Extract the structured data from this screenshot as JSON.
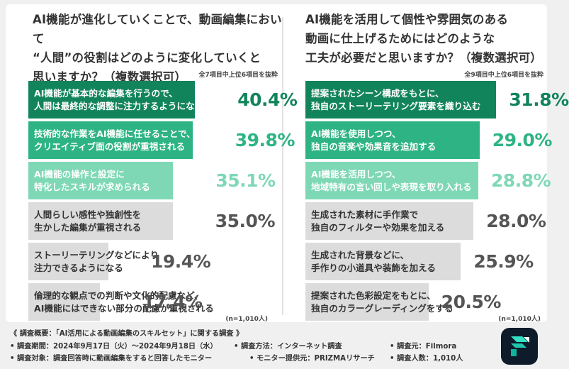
{
  "left_question": {
    "title": "AI機能が進化していくことで、動画編集において\n“人間”の役割はどのように変化していくと\n思いますか？（複数選択可）",
    "note": "全7項目中上位6項目を抜粋",
    "n": "(n=1,010人)"
  },
  "right_question": {
    "title": "AI機能を活用して個性や雰囲気のある\n動画に仕上げるためにはどのような\n工夫が必要だと思いますか？（複数選択可）",
    "note": "全9項目中上位6項目を抜粋",
    "n": "(n=1,010人)"
  },
  "colors": {
    "dark_green": "#12845c",
    "mid_green": "#2eb484",
    "light_green": "#7ed8b6",
    "gray": "#dcdcdc",
    "text_dark": "#333333",
    "text_light_green": "#7ed8b6"
  },
  "chart_data": [
    {
      "type": "bar",
      "orientation": "horizontal",
      "categories": [
        "AI機能が基本的な編集を行うので、\n人間は最終的な調整に注力するようになる",
        "技術的な作業をAI機能に任せることで、\nクリエイティブ面の役割が重視される",
        "AI機能の操作と設定に\n特化したスキルが求められる",
        "人間らしい感性や独創性を\n生かした編集が重視される",
        "ストーリーテリングなどにより\n注力できるようになる",
        "倫理的な観点での判断や文化的配慮など、\nAI機能にはできない部分の配慮が重視される"
      ],
      "values": [
        40.4,
        39.8,
        35.1,
        35.0,
        19.4,
        17.4
      ],
      "value_labels": [
        "40.4%",
        "39.8%",
        "35.1%",
        "35.0%",
        "19.4%",
        "17.4%"
      ],
      "bar_colors": [
        "#12845c",
        "#2eb484",
        "#7ed8b6",
        "#dcdcdc",
        "#dcdcdc",
        "#dcdcdc"
      ],
      "label_colors": [
        "#ffffff",
        "#ffffff",
        "#ffffff",
        "#333333",
        "#333333",
        "#333333"
      ],
      "value_colors": [
        "#12845c",
        "#2eb484",
        "#7ed8b6",
        "#555555",
        "#555555",
        "#555555"
      ],
      "xlim": [
        0,
        45
      ]
    },
    {
      "type": "bar",
      "orientation": "horizontal",
      "categories": [
        "提案されたシーン構成をもとに、\n独自のストーリーテリング要素を織り込む",
        "AI機能を使用しつつ、\n独自の音楽や効果音を追加する",
        "AI機能を活用しつつ、\n地域特有の言い回しや表現を取り入れる",
        "生成された素材に手作業で\n独自のフィルターや効果を加える",
        "生成された背景などに、\n手作りの小道具や装飾を加える",
        "提案された色彩設定をもとに、\n独自のカラーグレーディングをする"
      ],
      "values": [
        31.8,
        29.0,
        28.8,
        28.0,
        25.9,
        20.5
      ],
      "value_labels": [
        "31.8%",
        "29.0%",
        "28.8%",
        "28.0%",
        "25.9%",
        "20.5%"
      ],
      "bar_colors": [
        "#12845c",
        "#2eb484",
        "#7ed8b6",
        "#dcdcdc",
        "#dcdcdc",
        "#dcdcdc"
      ],
      "label_colors": [
        "#ffffff",
        "#ffffff",
        "#ffffff",
        "#333333",
        "#333333",
        "#333333"
      ],
      "value_colors": [
        "#12845c",
        "#2eb484",
        "#7ed8b6",
        "#555555",
        "#555555",
        "#555555"
      ],
      "xlim": [
        0,
        36
      ]
    }
  ],
  "footer": {
    "survey_title": "《 調査概要：「AI活用による動画編集のスキルセット」に関する調査 》",
    "period": "• 調査期間：2024年9月17日（火）〜2024年9月18日（水）",
    "method": "• 調査方法：インターネット調査",
    "source": "• 調査元：Filmora",
    "target": "• 調査対象：調査回答時に動画編集をすると回答したモニター",
    "provider": "• モニター提供元：PRIZMAリサーチ",
    "respondents": "• 調査人数：1,010人"
  },
  "logo": {
    "icon": "filmora-logo-icon"
  }
}
